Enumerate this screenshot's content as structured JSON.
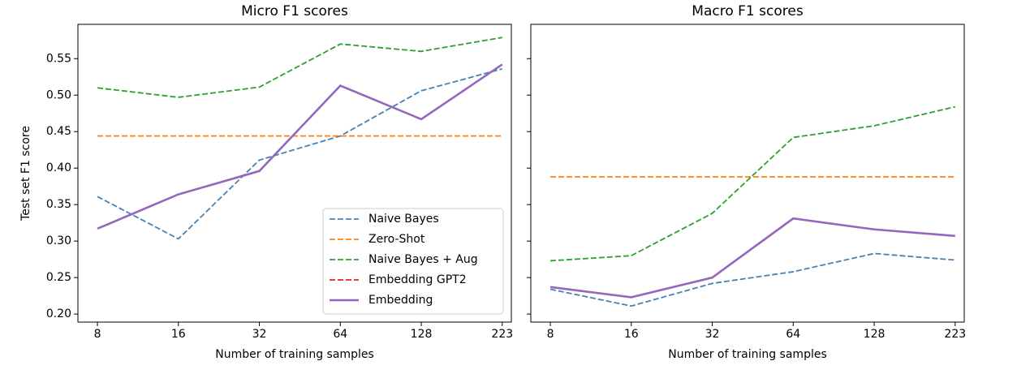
{
  "chart_data": [
    {
      "type": "line",
      "title": "Micro F1 scores",
      "xlabel": "Number of training samples",
      "ylabel": "Test set F1 score",
      "categories": [
        "8",
        "16",
        "32",
        "64",
        "128",
        "223"
      ],
      "ylim": [
        0.189,
        0.597
      ],
      "yticks": [
        {
          "value": 0.2,
          "label": "0.20"
        },
        {
          "value": 0.25,
          "label": "0.25"
        },
        {
          "value": 0.3,
          "label": "0.30"
        },
        {
          "value": 0.35,
          "label": "0.35"
        },
        {
          "value": 0.4,
          "label": "0.40"
        },
        {
          "value": 0.45,
          "label": "0.45"
        },
        {
          "value": 0.5,
          "label": "0.50"
        },
        {
          "value": 0.55,
          "label": "0.55"
        }
      ],
      "legend": "lower right",
      "series": [
        {
          "name": "Naive Bayes",
          "color": "#4682b4",
          "linestyle": "dashed",
          "values": [
            0.361,
            0.303,
            0.411,
            0.444,
            0.506,
            0.536
          ]
        },
        {
          "name": "Zero-Shot",
          "color": "#ff7f0e",
          "linestyle": "dashed",
          "values": [
            0.444,
            0.444,
            0.444,
            0.444,
            0.444,
            0.444
          ]
        },
        {
          "name": "Naive Bayes + Aug",
          "color": "#2ca02c",
          "linestyle": "dashed",
          "values": [
            0.51,
            0.497,
            0.511,
            0.57,
            0.56,
            0.579
          ]
        },
        {
          "name": "Embedding GPT2",
          "color": "#d62728",
          "linestyle": "dashed",
          "values": [
            null,
            null,
            null,
            null,
            null,
            null
          ]
        },
        {
          "name": "Embedding",
          "color": "#9467bd",
          "linestyle": "solid",
          "values": [
            0.317,
            0.364,
            0.396,
            0.513,
            0.467,
            0.542
          ]
        }
      ]
    },
    {
      "type": "line",
      "title": "Macro F1 scores",
      "xlabel": "Number of training samples",
      "categories": [
        "8",
        "16",
        "32",
        "64",
        "128",
        "223"
      ],
      "ylim": [
        0.189,
        0.597
      ],
      "yticks": [
        0.2,
        0.25,
        0.3,
        0.35,
        0.4,
        0.45,
        0.5,
        0.55
      ],
      "series": [
        {
          "name": "Naive Bayes",
          "color": "#4682b4",
          "linestyle": "dashed",
          "values": [
            0.234,
            0.211,
            0.242,
            0.258,
            0.283,
            0.274
          ]
        },
        {
          "name": "Zero-Shot",
          "color": "#ff7f0e",
          "linestyle": "dashed",
          "values": [
            0.388,
            0.388,
            0.388,
            0.388,
            0.388,
            0.388
          ]
        },
        {
          "name": "Naive Bayes + Aug",
          "color": "#2ca02c",
          "linestyle": "dashed",
          "values": [
            0.273,
            0.28,
            0.338,
            0.442,
            0.458,
            0.484
          ]
        },
        {
          "name": "Embedding",
          "color": "#9467bd",
          "linestyle": "solid",
          "values": [
            0.237,
            0.223,
            0.25,
            0.331,
            0.316,
            0.307
          ]
        }
      ]
    }
  ]
}
